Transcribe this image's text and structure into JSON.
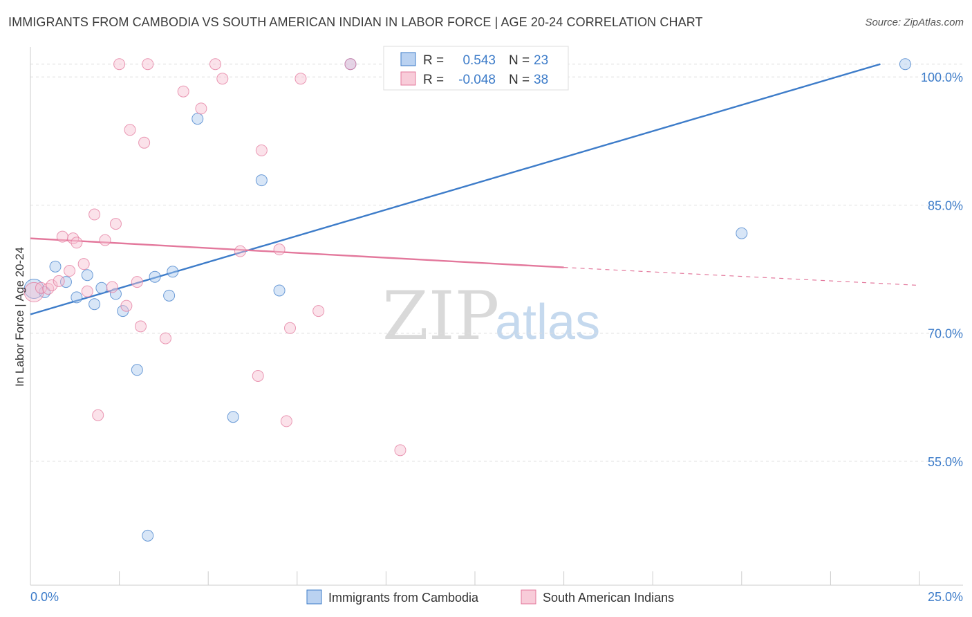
{
  "title": "IMMIGRANTS FROM CAMBODIA VS SOUTH AMERICAN INDIAN IN LABOR FORCE | AGE 20-24 CORRELATION CHART",
  "source": "Source: ZipAtlas.com",
  "watermark": {
    "part1": "ZIP",
    "part2": "atlas"
  },
  "chart_data": {
    "type": "scatter",
    "title": "IMMIGRANTS FROM CAMBODIA VS SOUTH AMERICAN INDIAN IN LABOR FORCE | AGE 20-24 CORRELATION CHART",
    "xlabel": "",
    "ylabel": "In Labor Force | Age 20-24",
    "xlim": [
      0,
      25
    ],
    "ylim": [
      40.5,
      103.5
    ],
    "x_tick_labels": {
      "min": "0.0%",
      "max": "25.0%"
    },
    "y_ticks": [
      {
        "value": 55,
        "label": "55.0%"
      },
      {
        "value": 70,
        "label": "70.0%"
      },
      {
        "value": 85,
        "label": "85.0%"
      },
      {
        "value": 100,
        "label": "100.0%"
      }
    ],
    "grid": "horizontal-dashed",
    "legend_position": "top-center",
    "series": [
      {
        "name": "Immigrants from Cambodia",
        "color": "#3d7cc9",
        "fill": "#a9c7ee",
        "R": "0.543",
        "N": "23",
        "trend": {
          "x0": 0,
          "y0": 72.2,
          "x1": 23.9,
          "y1": 101.5,
          "dashed_until": null
        },
        "points": [
          [
            0.1,
            75.2,
            14
          ],
          [
            0.4,
            74.8,
            8
          ],
          [
            0.7,
            77.8,
            8
          ],
          [
            1.0,
            76.0,
            8
          ],
          [
            1.3,
            74.2,
            8
          ],
          [
            1.6,
            76.8,
            8
          ],
          [
            1.8,
            73.4,
            8
          ],
          [
            2.0,
            75.3,
            8
          ],
          [
            2.4,
            74.6,
            8
          ],
          [
            2.6,
            72.6,
            8
          ],
          [
            3.0,
            65.7,
            8
          ],
          [
            3.3,
            46.3,
            8
          ],
          [
            3.5,
            76.6,
            8
          ],
          [
            3.9,
            74.4,
            8
          ],
          [
            4.0,
            77.2,
            8
          ],
          [
            4.7,
            95.1,
            8
          ],
          [
            5.7,
            60.2,
            8
          ],
          [
            6.5,
            87.9,
            8
          ],
          [
            7.0,
            75.0,
            8
          ],
          [
            9.0,
            101.5,
            8
          ],
          [
            10.1,
            101.5,
            8
          ],
          [
            20.0,
            81.7,
            8
          ],
          [
            24.6,
            101.5,
            8
          ]
        ]
      },
      {
        "name": "South American Indians",
        "color": "#e3789c",
        "fill": "#f6bfd0",
        "R": "-0.048",
        "N": "38",
        "trend": {
          "x0": 0,
          "y0": 81.1,
          "x1": 15.0,
          "y1": 77.7,
          "dashed_end": {
            "x": 25,
            "y": 75.6
          }
        },
        "points": [
          [
            0.1,
            74.8,
            14
          ],
          [
            0.3,
            75.3,
            8
          ],
          [
            0.5,
            75.2,
            8
          ],
          [
            0.6,
            75.6,
            8
          ],
          [
            0.8,
            76.1,
            8
          ],
          [
            0.9,
            81.3,
            8
          ],
          [
            1.1,
            77.3,
            8
          ],
          [
            1.2,
            81.1,
            8
          ],
          [
            1.3,
            80.6,
            8
          ],
          [
            1.5,
            78.1,
            8
          ],
          [
            1.6,
            74.9,
            8
          ],
          [
            1.8,
            83.9,
            8
          ],
          [
            1.9,
            60.4,
            8
          ],
          [
            2.1,
            80.9,
            8
          ],
          [
            2.3,
            75.4,
            8
          ],
          [
            2.4,
            82.8,
            8
          ],
          [
            2.5,
            101.5,
            8
          ],
          [
            2.7,
            73.2,
            8
          ],
          [
            2.8,
            93.8,
            8
          ],
          [
            3.0,
            76.0,
            8
          ],
          [
            3.1,
            70.8,
            8
          ],
          [
            3.2,
            92.3,
            8
          ],
          [
            3.3,
            101.5,
            8
          ],
          [
            3.8,
            69.4,
            8
          ],
          [
            4.3,
            98.3,
            8
          ],
          [
            4.8,
            96.3,
            8
          ],
          [
            5.2,
            101.5,
            8
          ],
          [
            5.4,
            99.8,
            8
          ],
          [
            5.9,
            79.6,
            8
          ],
          [
            6.4,
            65.0,
            8
          ],
          [
            6.5,
            91.4,
            8
          ],
          [
            7.0,
            79.8,
            8
          ],
          [
            7.2,
            59.7,
            8
          ],
          [
            7.3,
            70.6,
            8
          ],
          [
            7.6,
            99.8,
            8
          ],
          [
            8.1,
            72.6,
            8
          ],
          [
            9.0,
            101.5,
            8
          ],
          [
            10.4,
            56.3,
            8
          ]
        ]
      }
    ]
  }
}
